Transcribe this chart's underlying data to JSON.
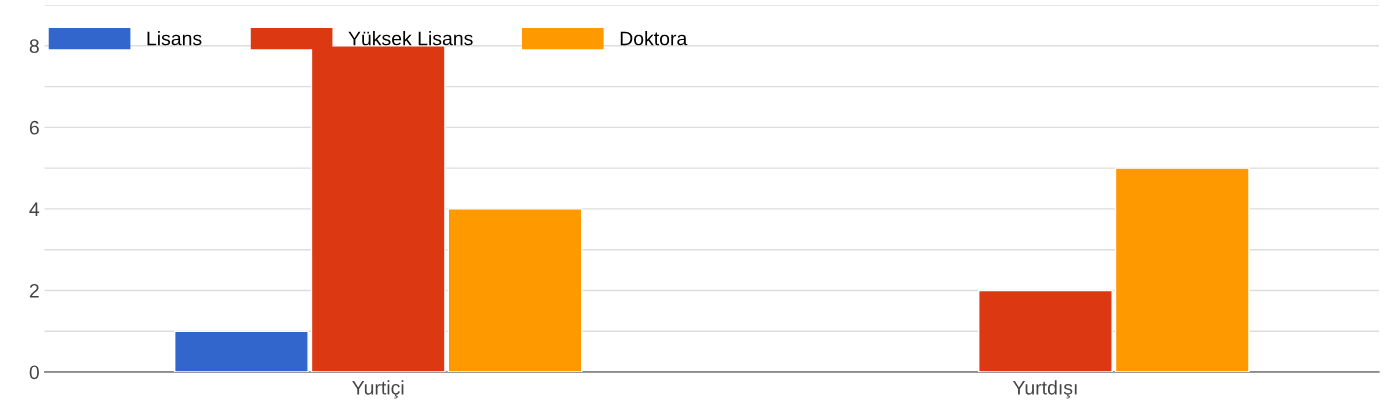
{
  "chart_data": {
    "type": "bar",
    "categories": [
      "Yurtiçi",
      "Yurtdışı"
    ],
    "series": [
      {
        "name": "Lisans",
        "color": "#3366cc",
        "values": [
          1,
          null
        ]
      },
      {
        "name": "Yüksek Lisans",
        "color": "#dc3912",
        "values": [
          8,
          2
        ]
      },
      {
        "name": "Doktora",
        "color": "#ff9900",
        "values": [
          4,
          5
        ]
      }
    ],
    "ylim": [
      0,
      9
    ],
    "yticks": [
      0,
      {
        "value": 1,
        "label": null
      },
      2,
      {
        "value": 3,
        "label": null
      },
      4,
      {
        "value": 5,
        "label": null
      },
      6,
      {
        "value": 7,
        "label": null
      },
      8,
      {
        "value": 9,
        "label": null
      }
    ],
    "grid": "y",
    "legend": "top left"
  }
}
